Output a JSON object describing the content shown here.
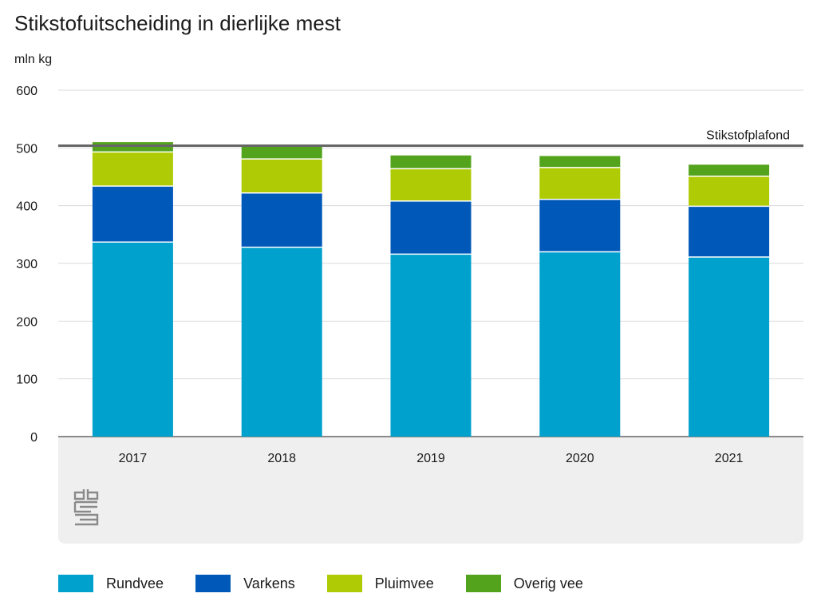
{
  "chart_data": {
    "type": "bar",
    "stacked": true,
    "title": "Stikstofuitscheiding in dierlijke mest",
    "ylabel": "mln kg",
    "xlabel": "",
    "ylim": [
      0,
      600
    ],
    "yticks": [
      "600",
      "500",
      "400",
      "300",
      "200",
      "100",
      "0"
    ],
    "categories": [
      "2017",
      "2018",
      "2019",
      "2020",
      "2021"
    ],
    "series": [
      {
        "name": "Rundvee",
        "color": "#00a1cd",
        "values": [
          337,
          328,
          316,
          320,
          311
        ]
      },
      {
        "name": "Varkens",
        "color": "#0058b8",
        "values": [
          97,
          94,
          92,
          91,
          88
        ]
      },
      {
        "name": "Pluimvee",
        "color": "#afcb05",
        "values": [
          59,
          59,
          56,
          55,
          52
        ]
      },
      {
        "name": "Overig vee",
        "color": "#53a31d",
        "values": [
          17,
          21,
          23,
          20,
          20
        ]
      }
    ],
    "reference_line": {
      "label": "Stikstofplafond",
      "value": 504,
      "color": "#666666"
    },
    "grid": true,
    "legend_position": "bottom"
  }
}
